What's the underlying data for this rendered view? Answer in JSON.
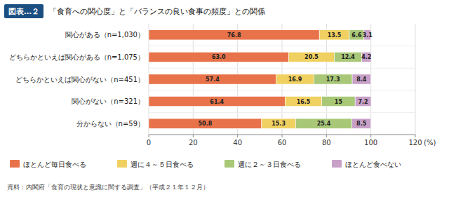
{
  "chart_data": {
    "type": "bar",
    "orientation": "horizontal",
    "stacked": true,
    "data_labels": true,
    "grid": true,
    "legend": "bottom",
    "title": "「食育への関心度」と「バランスの良い食事の頻度」との関係",
    "annotations": [
      "図表…２",
      "資料：内閣府「食育の現状と意識に関する調査」（平成２１年１２月）"
    ],
    "xlabel": "(%)",
    "categories": [
      "関心がある（n=1,030）",
      "どちらかといえば関心がある（n=1,075）",
      "どちらかといえば関心がない（n=451）",
      "関心がない（n=321）",
      "分からない（n=59）"
    ],
    "series": [
      {
        "name": "ほとんど毎日食べる",
        "color": "#E8734A",
        "values": [
          76.8,
          63.0,
          57.4,
          61.4,
          50.8
        ],
        "value_labels": [
          "76.8",
          "63.0",
          "57.4",
          "61.4",
          "50.8"
        ]
      },
      {
        "name": "週に４～５日食べる",
        "color": "#F0D060",
        "values": [
          13.5,
          20.5,
          16.9,
          16.5,
          15.3
        ]
      },
      {
        "name": "週に２～３日食べる",
        "color": "#A8C878",
        "values": [
          6.6,
          12.4,
          17.3,
          15.0,
          25.4
        ]
      },
      {
        "name": "ほとんど食べない",
        "color": "#C8A0C8",
        "values": [
          3.1,
          4.2,
          8.4,
          7.2,
          8.5
        ]
      }
    ],
    "xlim": [
      0,
      120
    ],
    "xticks": [
      0,
      20,
      40,
      60,
      80,
      100,
      120
    ]
  }
}
